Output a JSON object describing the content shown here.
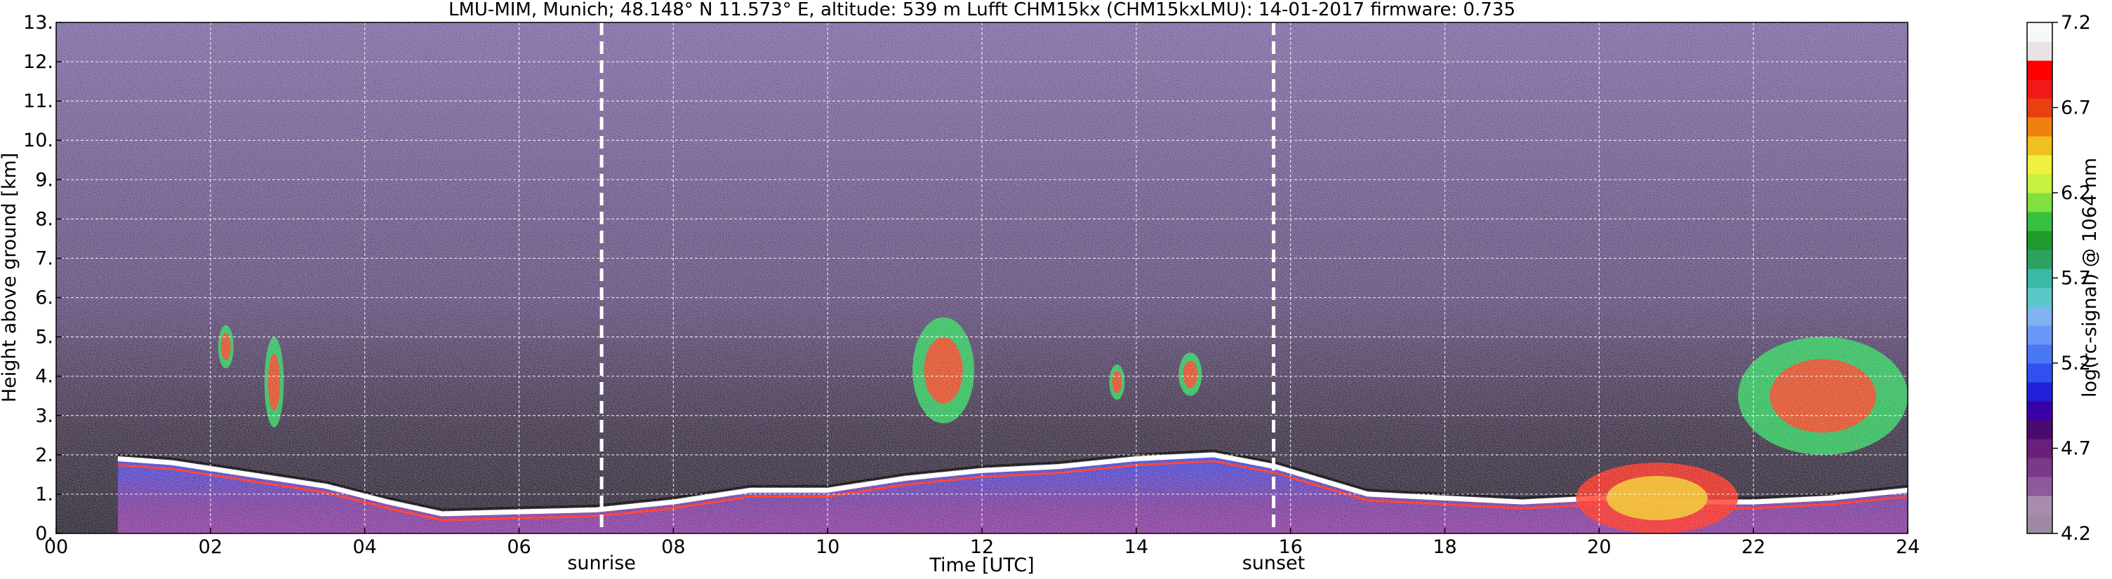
{
  "chart_data": {
    "type": "heatmap",
    "title": "LMU-MIM, Munich; 48.148° N 11.573° E, altitude: 539 m    Lufft CHM15kx (CHM15kxLMU): 14-01-2017    firmware: 0.735",
    "xlabel": "Time [UTC]",
    "ylabel": "Height above ground [km]",
    "colorbar_label": "log(rc-signal) @ 1064 nm",
    "xlim": [
      0,
      24
    ],
    "ylim": [
      0,
      13
    ],
    "x_ticks": [
      0,
      2,
      4,
      6,
      8,
      10,
      12,
      14,
      16,
      18,
      20,
      22,
      24
    ],
    "x_tick_labels": [
      "00",
      "02",
      "04",
      "06",
      "08",
      "10",
      "12",
      "14",
      "16",
      "18",
      "20",
      "22",
      "24"
    ],
    "y_ticks": [
      0,
      1,
      2,
      3,
      4,
      5,
      6,
      7,
      8,
      9,
      10,
      11,
      12,
      13
    ],
    "y_tick_labels": [
      "0.",
      "1.",
      "2.",
      "3.",
      "4.",
      "5.",
      "6.",
      "7.",
      "8.",
      "9.",
      "10.",
      "11.",
      "12.",
      "13."
    ],
    "grid": true,
    "colorbar_range": [
      4.2,
      7.2
    ],
    "colorbar_ticks": [
      4.2,
      4.7,
      5.2,
      5.7,
      6.2,
      6.7,
      7.2
    ],
    "colorbar_tick_labels": [
      "4.2",
      "4.7",
      "5.2",
      "5.7",
      "6.2",
      "6.7",
      "7.2"
    ],
    "colorbar_colors": [
      "#9e8aa4",
      "#a88cae",
      "#8e5a9a",
      "#7a3a88",
      "#6b1f7d",
      "#4a0a6e",
      "#3a00a8",
      "#2020d8",
      "#3050f0",
      "#4a78f5",
      "#6a98f8",
      "#80b4f0",
      "#5ac8c8",
      "#3ab8a8",
      "#2ea060",
      "#1e9a2e",
      "#38c040",
      "#80e040",
      "#c8f040",
      "#f0f040",
      "#f0c020",
      "#f08010",
      "#e84010",
      "#f01818",
      "#ff0000",
      "#e8e2e6",
      "#f8f8f8"
    ],
    "annotations": [
      {
        "text": "sunrise",
        "x": 7.07
      },
      {
        "text": "sunset",
        "x": 15.78
      }
    ],
    "plot_colors": {
      "background_noise": "#6a5484",
      "aerosol_layer": "#3a48e8",
      "surface_layer": "#8e3aa0",
      "strong_layer": "#ff2a1a"
    },
    "features": [
      {
        "name": "boundary layer top",
        "x": [
          0.8,
          1.5,
          2.5,
          3.5,
          4.3,
          5.0,
          6.0,
          7.0,
          8.0,
          9.0,
          10.0,
          11.0,
          12.0,
          13.0,
          14.0,
          15.0,
          15.8,
          17.0,
          18.0,
          19.0,
          20.0,
          21.0,
          22.0,
          23.0,
          24.0
        ],
        "y": [
          1.9,
          1.8,
          1.5,
          1.2,
          0.8,
          0.5,
          0.55,
          0.6,
          0.8,
          1.1,
          1.1,
          1.4,
          1.6,
          1.7,
          1.9,
          2.0,
          1.7,
          1.0,
          0.9,
          0.8,
          0.9,
          0.8,
          0.8,
          0.9,
          1.1
        ]
      },
      {
        "name": "cloud patch",
        "x_range": [
          2.7,
          2.95
        ],
        "y_range": [
          2.7,
          5.0
        ]
      },
      {
        "name": "cloud patch",
        "x_range": [
          2.1,
          2.3
        ],
        "y_range": [
          4.2,
          5.3
        ]
      },
      {
        "name": "cloud patch",
        "x_range": [
          11.1,
          11.9
        ],
        "y_range": [
          2.8,
          5.5
        ]
      },
      {
        "name": "cloud patch",
        "x_range": [
          14.55,
          14.85
        ],
        "y_range": [
          3.5,
          4.6
        ]
      },
      {
        "name": "cloud patch",
        "x_range": [
          13.65,
          13.85
        ],
        "y_range": [
          3.4,
          4.3
        ]
      },
      {
        "name": "cloud patch",
        "x_range": [
          21.8,
          24.0
        ],
        "y_range": [
          2.0,
          5.0
        ]
      },
      {
        "name": "strong aerosol layer",
        "x_range": [
          19.7,
          21.8
        ],
        "y_range": [
          0.0,
          1.8
        ]
      }
    ]
  }
}
